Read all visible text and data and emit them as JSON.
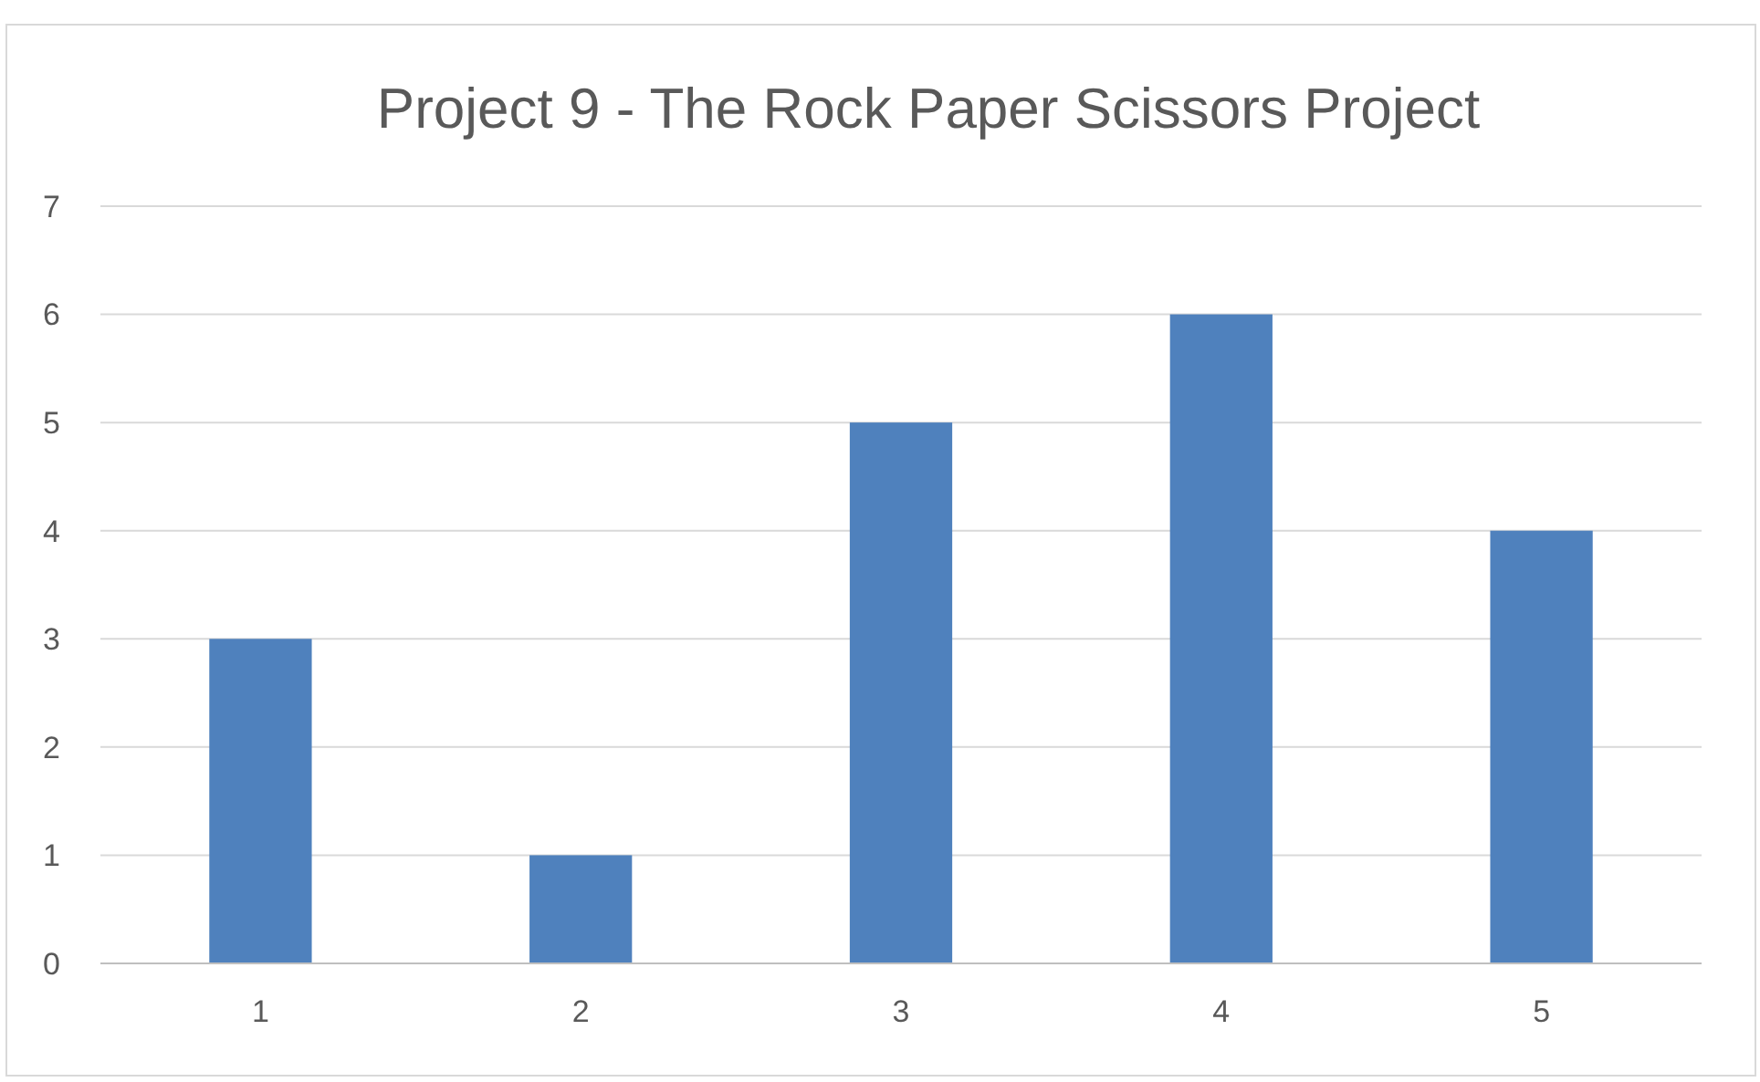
{
  "chart_data": {
    "type": "bar",
    "title": "Project 9 - The Rock Paper Scissors Project",
    "categories": [
      "1",
      "2",
      "3",
      "4",
      "5"
    ],
    "values": [
      3,
      1,
      5,
      6,
      4
    ],
    "color": "#4f81bd",
    "ylim": [
      0,
      7
    ],
    "yticks": [
      0,
      1,
      2,
      3,
      4,
      5,
      6,
      7
    ],
    "grid": "y"
  }
}
